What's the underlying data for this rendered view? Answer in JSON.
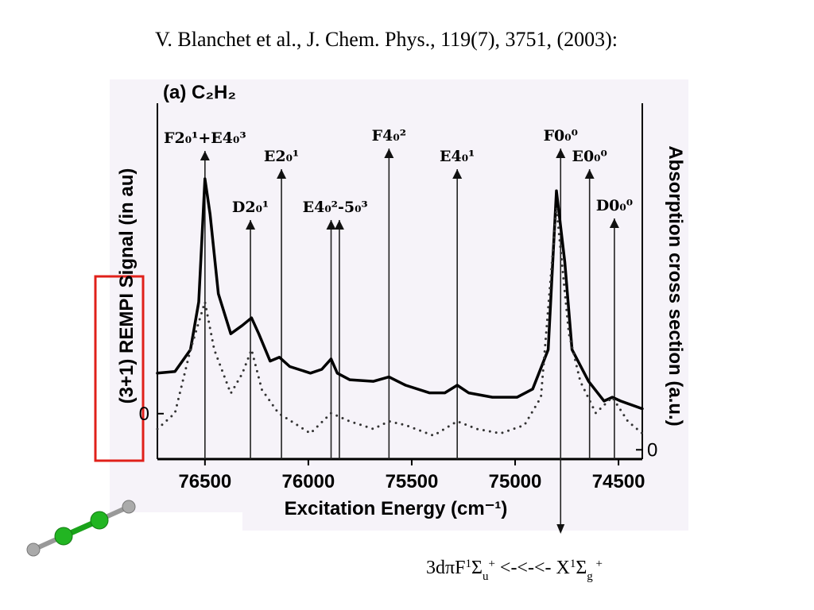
{
  "slide": {
    "citation": "V. Blanchet et al., J. Chem. Phys., 119(7), 3751, (2003):",
    "transition": [
      {
        "text": "3dπF"
      },
      {
        "text": "1",
        "sup": true
      },
      {
        "text": "Σ"
      },
      {
        "text": "u",
        "sub": true
      },
      {
        "text": "+",
        "sup": true
      },
      {
        "text": " <-<-<- X"
      },
      {
        "text": "1",
        "sup": true
      },
      {
        "text": "Σ"
      },
      {
        "text": "g",
        "sub": true
      },
      {
        "text": " +",
        "sup": true
      }
    ]
  },
  "chart_data": {
    "type": "line",
    "title": "(a) C₂H₂",
    "x_label": "Excitation Energy (cm⁻¹)",
    "y_label": "(3+1) REMPI Signal (in au)",
    "y2_label": "Absorption cross section (a.u.)",
    "xlim": [
      76730,
      74385
    ],
    "xticks": [
      76500,
      76000,
      75500,
      75000,
      74500
    ],
    "ylim": [
      -0.83,
      5.67
    ],
    "yticks": [
      0
    ],
    "y2lim": [
      -0.17,
      6.33
    ],
    "y2ticks": [
      0
    ],
    "series": [
      {
        "color": "#000000",
        "style": "solid",
        "x": [
          76730,
          76645,
          76570,
          76530,
          76500,
          76475,
          76435,
          76375,
          76320,
          76275,
          76240,
          76185,
          76140,
          76090,
          75990,
          75935,
          75890,
          75860,
          75800,
          75685,
          75610,
          75530,
          75415,
          75340,
          75280,
          75225,
          75110,
          74990,
          74915,
          74840,
          74800,
          74760,
          74725,
          74645,
          74570,
          74530,
          74490,
          74385
        ],
        "values": [
          0.74,
          0.77,
          1.17,
          2.04,
          4.29,
          3.64,
          2.19,
          1.46,
          1.61,
          1.75,
          1.46,
          0.96,
          1.03,
          0.86,
          0.74,
          0.81,
          1.0,
          0.74,
          0.62,
          0.59,
          0.67,
          0.52,
          0.38,
          0.38,
          0.52,
          0.38,
          0.3,
          0.3,
          0.45,
          1.17,
          4.07,
          2.77,
          1.17,
          0.59,
          0.23,
          0.3,
          0.23,
          0.09
        ]
      },
      {
        "color": "#333333",
        "style": "dotted",
        "axis": "y2",
        "x": [
          76730,
          76645,
          76570,
          76500,
          76455,
          76375,
          76320,
          76275,
          76225,
          76145,
          75990,
          75890,
          75800,
          75685,
          75610,
          75530,
          75395,
          75280,
          75185,
          75070,
          74955,
          74875,
          74800,
          74740,
          74685,
          74610,
          74530,
          74455,
          74385
        ],
        "values": [
          0.38,
          0.67,
          1.83,
          2.7,
          1.83,
          1.03,
          1.39,
          1.83,
          1.1,
          0.67,
          0.3,
          0.67,
          0.52,
          0.38,
          0.52,
          0.45,
          0.26,
          0.52,
          0.38,
          0.3,
          0.45,
          0.96,
          4.43,
          2.12,
          1.25,
          0.67,
          0.96,
          0.52,
          0.3
        ]
      }
    ],
    "annotations": [
      {
        "text": "F2₀¹+E4₀³",
        "x": [
          76500
        ]
      },
      {
        "text": "D2₀¹",
        "x": [
          76280
        ]
      },
      {
        "text": "E2₀¹",
        "x": [
          76130
        ]
      },
      {
        "text": "E4₀²-5₀³",
        "x": [
          75890,
          75850
        ]
      },
      {
        "text": "F4₀²",
        "x": [
          75610
        ]
      },
      {
        "text": "E4₀¹",
        "x": [
          75280
        ]
      },
      {
        "text": "F0₀⁰",
        "x": [
          74780
        ]
      },
      {
        "text": "E0₀⁰",
        "x": [
          74640
        ]
      },
      {
        "text": "D0₀⁰",
        "x": [
          74520
        ]
      }
    ]
  }
}
